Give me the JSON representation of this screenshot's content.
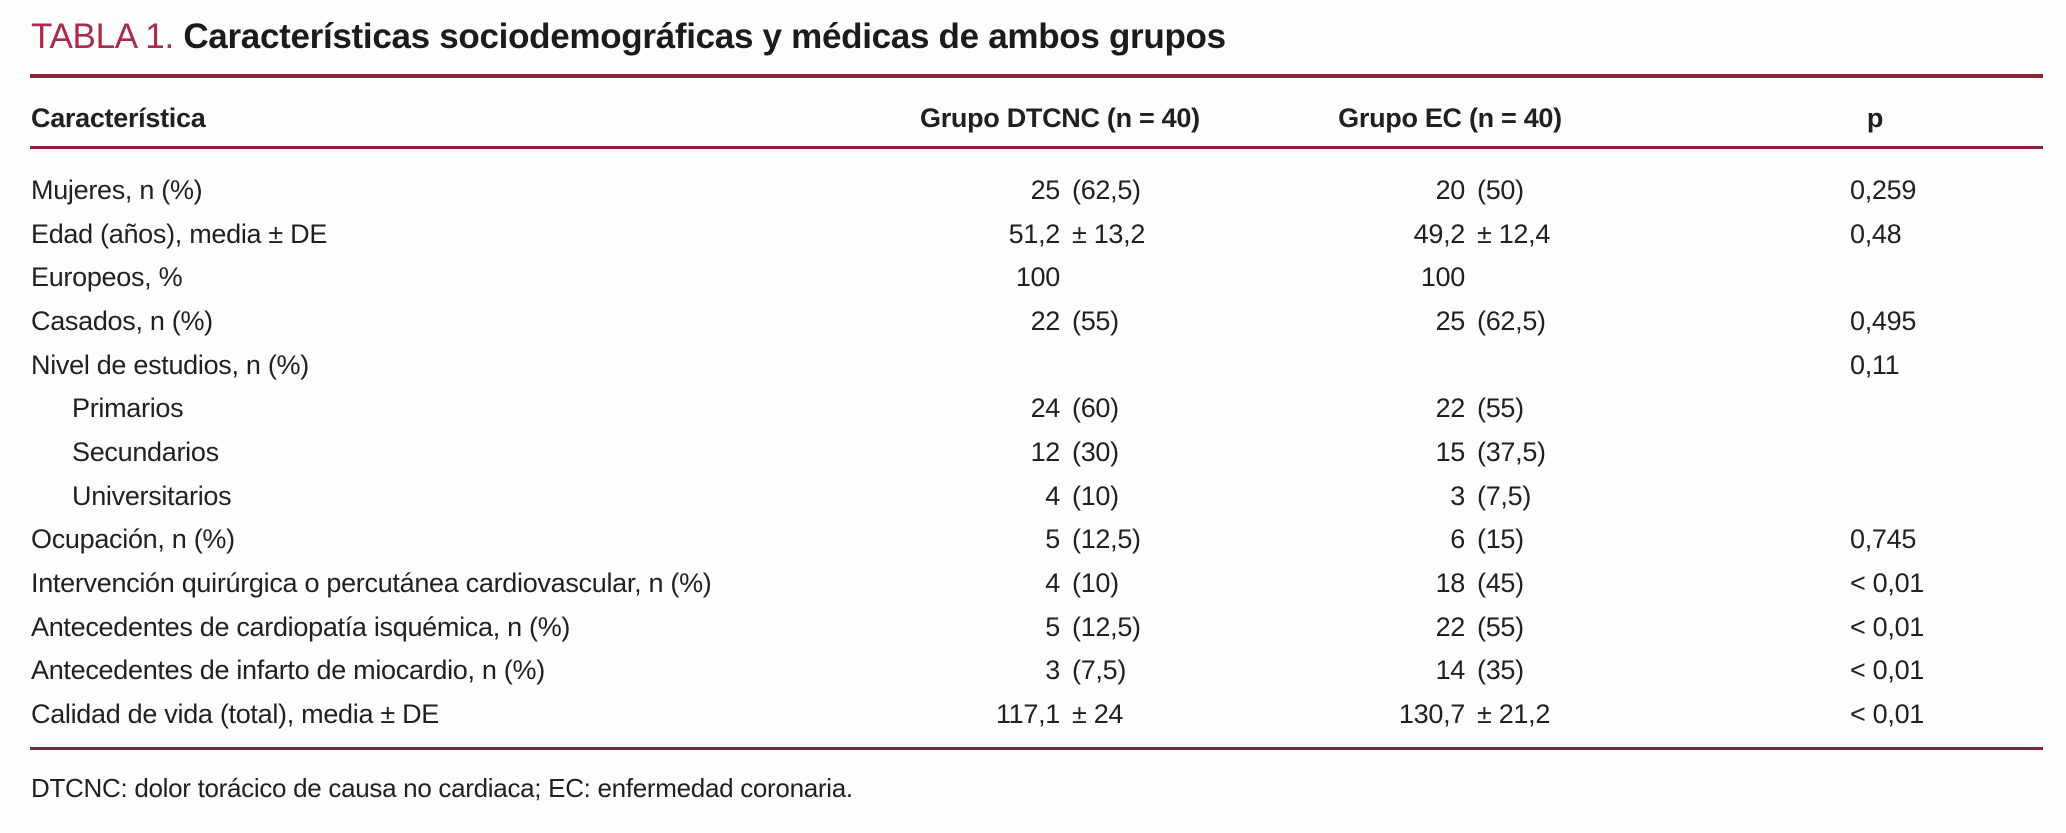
{
  "title": {
    "label": "TABLA 1.",
    "text": "Características sociodemográficas y médicas de ambos grupos"
  },
  "colors": {
    "accent_title": "#ab2b4b",
    "rule": "#8c2337",
    "text": "#231f20",
    "background": "#fdfdfd"
  },
  "table": {
    "headers": {
      "characteristic": "Característica",
      "group1": "Grupo DTCNC (n = 40)",
      "group2": "Grupo EC (n = 40)",
      "p": "p"
    },
    "rows": [
      {
        "label": "Mujeres, n (%)",
        "indent": false,
        "group1": "25 (62,5)",
        "group2": "20 (50)",
        "p": "0,259"
      },
      {
        "label": "Edad (años), media ± DE",
        "indent": false,
        "group1": "51,2 ± 13,2",
        "group2": "49,2 ± 12,4",
        "p": "0,48"
      },
      {
        "label": "Europeos, %",
        "indent": false,
        "group1": "100",
        "group2": "100",
        "p": ""
      },
      {
        "label": "Casados, n (%)",
        "indent": false,
        "group1": "22 (55)",
        "group2": "25 (62,5)",
        "p": "0,495"
      },
      {
        "label": "Nivel de estudios, n (%)",
        "indent": false,
        "group1": "",
        "group2": "",
        "p": "0,11"
      },
      {
        "label": "Primarios",
        "indent": true,
        "group1": "24 (60)",
        "group2": "22 (55)",
        "p": ""
      },
      {
        "label": "Secundarios",
        "indent": true,
        "group1": "12 (30)",
        "group2": "15 (37,5)",
        "p": ""
      },
      {
        "label": "Universitarios",
        "indent": true,
        "group1": "4 (10)",
        "group2": "3 (7,5)",
        "p": ""
      },
      {
        "label": "Ocupación, n (%)",
        "indent": false,
        "group1": "5 (12,5)",
        "group2": "6 (15)",
        "p": "0,745"
      },
      {
        "label": "Intervención quirúrgica o percutánea cardiovascular, n (%)",
        "indent": false,
        "group1": "4 (10)",
        "group2": "18 (45)",
        "p": "< 0,01"
      },
      {
        "label": "Antecedentes de cardiopatía isquémica, n (%)",
        "indent": false,
        "group1": "5 (12,5)",
        "group2": "22 (55)",
        "p": "< 0,01"
      },
      {
        "label": "Antecedentes de infarto de miocardio, n (%)",
        "indent": false,
        "group1": "3 (7,5)",
        "group2": "14 (35)",
        "p": "< 0,01"
      },
      {
        "label": "Calidad de vida (total), media ± DE",
        "indent": false,
        "group1": "117,1 ± 24",
        "group2": "130,7 ± 21,2",
        "p": "< 0,01"
      }
    ]
  },
  "footnote": "DTCNC: dolor torácico de causa no cardiaca; EC: enfermedad coronaria."
}
